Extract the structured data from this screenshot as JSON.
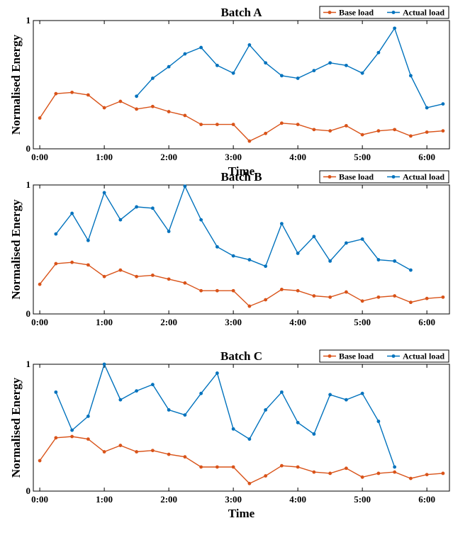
{
  "colors": {
    "base": "#D95319",
    "actual": "#0072BD",
    "axis": "#000000"
  },
  "chart_data": [
    {
      "type": "line",
      "title": "Batch A",
      "xlabel": "Time",
      "ylabel": "Normalised Energy",
      "xlim": [
        -0.1,
        6.35
      ],
      "ylim": [
        0,
        1
      ],
      "x_ticks": [
        0,
        1,
        2,
        3,
        4,
        5,
        6
      ],
      "x_tick_labels": [
        "0:00",
        "1:00",
        "2:00",
        "3:00",
        "4:00",
        "5:00",
        "6:00"
      ],
      "y_ticks": [
        0,
        1
      ],
      "y_tick_labels": [
        "0",
        "1"
      ],
      "legend": "top-right",
      "series": [
        {
          "name": "Base load",
          "color": "#D95319",
          "x": [
            0,
            0.25,
            0.5,
            0.75,
            1,
            1.25,
            1.5,
            1.75,
            2,
            2.25,
            2.5,
            2.75,
            3,
            3.25,
            3.5,
            3.75,
            4,
            4.25,
            4.5,
            4.75,
            5,
            5.25,
            5.5,
            5.75,
            6,
            6.25
          ],
          "y": [
            0.24,
            0.43,
            0.44,
            0.42,
            0.32,
            0.37,
            0.31,
            0.33,
            0.29,
            0.26,
            0.19,
            0.19,
            0.19,
            0.06,
            0.12,
            0.2,
            0.19,
            0.15,
            0.14,
            0.18,
            0.11,
            0.14,
            0.15,
            0.1,
            0.13,
            0.14
          ]
        },
        {
          "name": "Actual load",
          "color": "#0072BD",
          "x": [
            1.5,
            1.75,
            2,
            2.25,
            2.5,
            2.75,
            3,
            3.25,
            3.5,
            3.75,
            4,
            4.25,
            4.5,
            4.75,
            5,
            5.25,
            5.5,
            5.75,
            6,
            6.25
          ],
          "y": [
            0.41,
            0.55,
            0.64,
            0.74,
            0.79,
            0.65,
            0.59,
            0.81,
            0.67,
            0.57,
            0.55,
            0.61,
            0.67,
            0.65,
            0.59,
            0.75,
            0.94,
            0.57,
            0.32,
            0.35
          ]
        }
      ]
    },
    {
      "type": "line",
      "title": "Batch B",
      "xlabel": "",
      "ylabel": "Normalised Energy",
      "xlim": [
        -0.1,
        6.35
      ],
      "ylim": [
        0,
        1
      ],
      "x_ticks": [
        0,
        1,
        2,
        3,
        4,
        5,
        6
      ],
      "x_tick_labels": [
        "0:00",
        "1:00",
        "2:00",
        "3:00",
        "4:00",
        "5:00",
        "6:00"
      ],
      "y_ticks": [
        0,
        1
      ],
      "y_tick_labels": [
        "0",
        "1"
      ],
      "legend": "top-right",
      "series": [
        {
          "name": "Base load",
          "color": "#D95319",
          "x": [
            0,
            0.25,
            0.5,
            0.75,
            1,
            1.25,
            1.5,
            1.75,
            2,
            2.25,
            2.5,
            2.75,
            3,
            3.25,
            3.5,
            3.75,
            4,
            4.25,
            4.5,
            4.75,
            5,
            5.25,
            5.5,
            5.75,
            6,
            6.25
          ],
          "y": [
            0.23,
            0.39,
            0.4,
            0.38,
            0.29,
            0.34,
            0.29,
            0.3,
            0.27,
            0.24,
            0.18,
            0.18,
            0.18,
            0.06,
            0.11,
            0.19,
            0.18,
            0.14,
            0.13,
            0.17,
            0.1,
            0.13,
            0.14,
            0.09,
            0.12,
            0.13
          ]
        },
        {
          "name": "Actual load",
          "color": "#0072BD",
          "x": [
            0.25,
            0.5,
            0.75,
            1,
            1.25,
            1.5,
            1.75,
            2,
            2.25,
            2.5,
            2.75,
            3,
            3.25,
            3.5,
            3.75,
            4,
            4.25,
            4.5,
            4.75,
            5,
            5.25,
            5.5,
            5.75
          ],
          "y": [
            0.62,
            0.78,
            0.57,
            0.94,
            0.73,
            0.83,
            0.82,
            0.64,
            0.99,
            0.73,
            0.52,
            0.45,
            0.42,
            0.37,
            0.7,
            0.47,
            0.6,
            0.41,
            0.55,
            0.58,
            0.42,
            0.41,
            0.34
          ]
        }
      ]
    },
    {
      "type": "line",
      "title": "Batch C",
      "xlabel": "Time",
      "ylabel": "Normalised Energy",
      "xlim": [
        -0.1,
        6.35
      ],
      "ylim": [
        0,
        1
      ],
      "x_ticks": [
        0,
        1,
        2,
        3,
        4,
        5,
        6
      ],
      "x_tick_labels": [
        "0:00",
        "1:00",
        "2:00",
        "3:00",
        "4:00",
        "5:00",
        "6:00"
      ],
      "y_ticks": [
        0,
        1
      ],
      "y_tick_labels": [
        "0",
        "1"
      ],
      "legend": "top-right",
      "series": [
        {
          "name": "Base load",
          "color": "#D95319",
          "x": [
            0,
            0.25,
            0.5,
            0.75,
            1,
            1.25,
            1.5,
            1.75,
            2,
            2.25,
            2.5,
            2.75,
            3,
            3.25,
            3.5,
            3.75,
            4,
            4.25,
            4.5,
            4.75,
            5,
            5.25,
            5.5,
            5.75,
            6,
            6.25
          ],
          "y": [
            0.24,
            0.42,
            0.43,
            0.41,
            0.31,
            0.36,
            0.31,
            0.32,
            0.29,
            0.27,
            0.19,
            0.19,
            0.19,
            0.06,
            0.12,
            0.2,
            0.19,
            0.15,
            0.14,
            0.18,
            0.11,
            0.14,
            0.15,
            0.1,
            0.13,
            0.14
          ]
        },
        {
          "name": "Actual load",
          "color": "#0072BD",
          "x": [
            0.25,
            0.5,
            0.75,
            1,
            1.25,
            1.5,
            1.75,
            2,
            2.25,
            2.5,
            2.75,
            3,
            3.25,
            3.5,
            3.75,
            4,
            4.25,
            4.5,
            4.75,
            5,
            5.25,
            5.5
          ],
          "y": [
            0.78,
            0.48,
            0.59,
            1.0,
            0.72,
            0.79,
            0.84,
            0.64,
            0.6,
            0.77,
            0.93,
            0.49,
            0.41,
            0.64,
            0.78,
            0.54,
            0.45,
            0.76,
            0.72,
            0.77,
            0.55,
            0.19
          ]
        }
      ]
    }
  ]
}
